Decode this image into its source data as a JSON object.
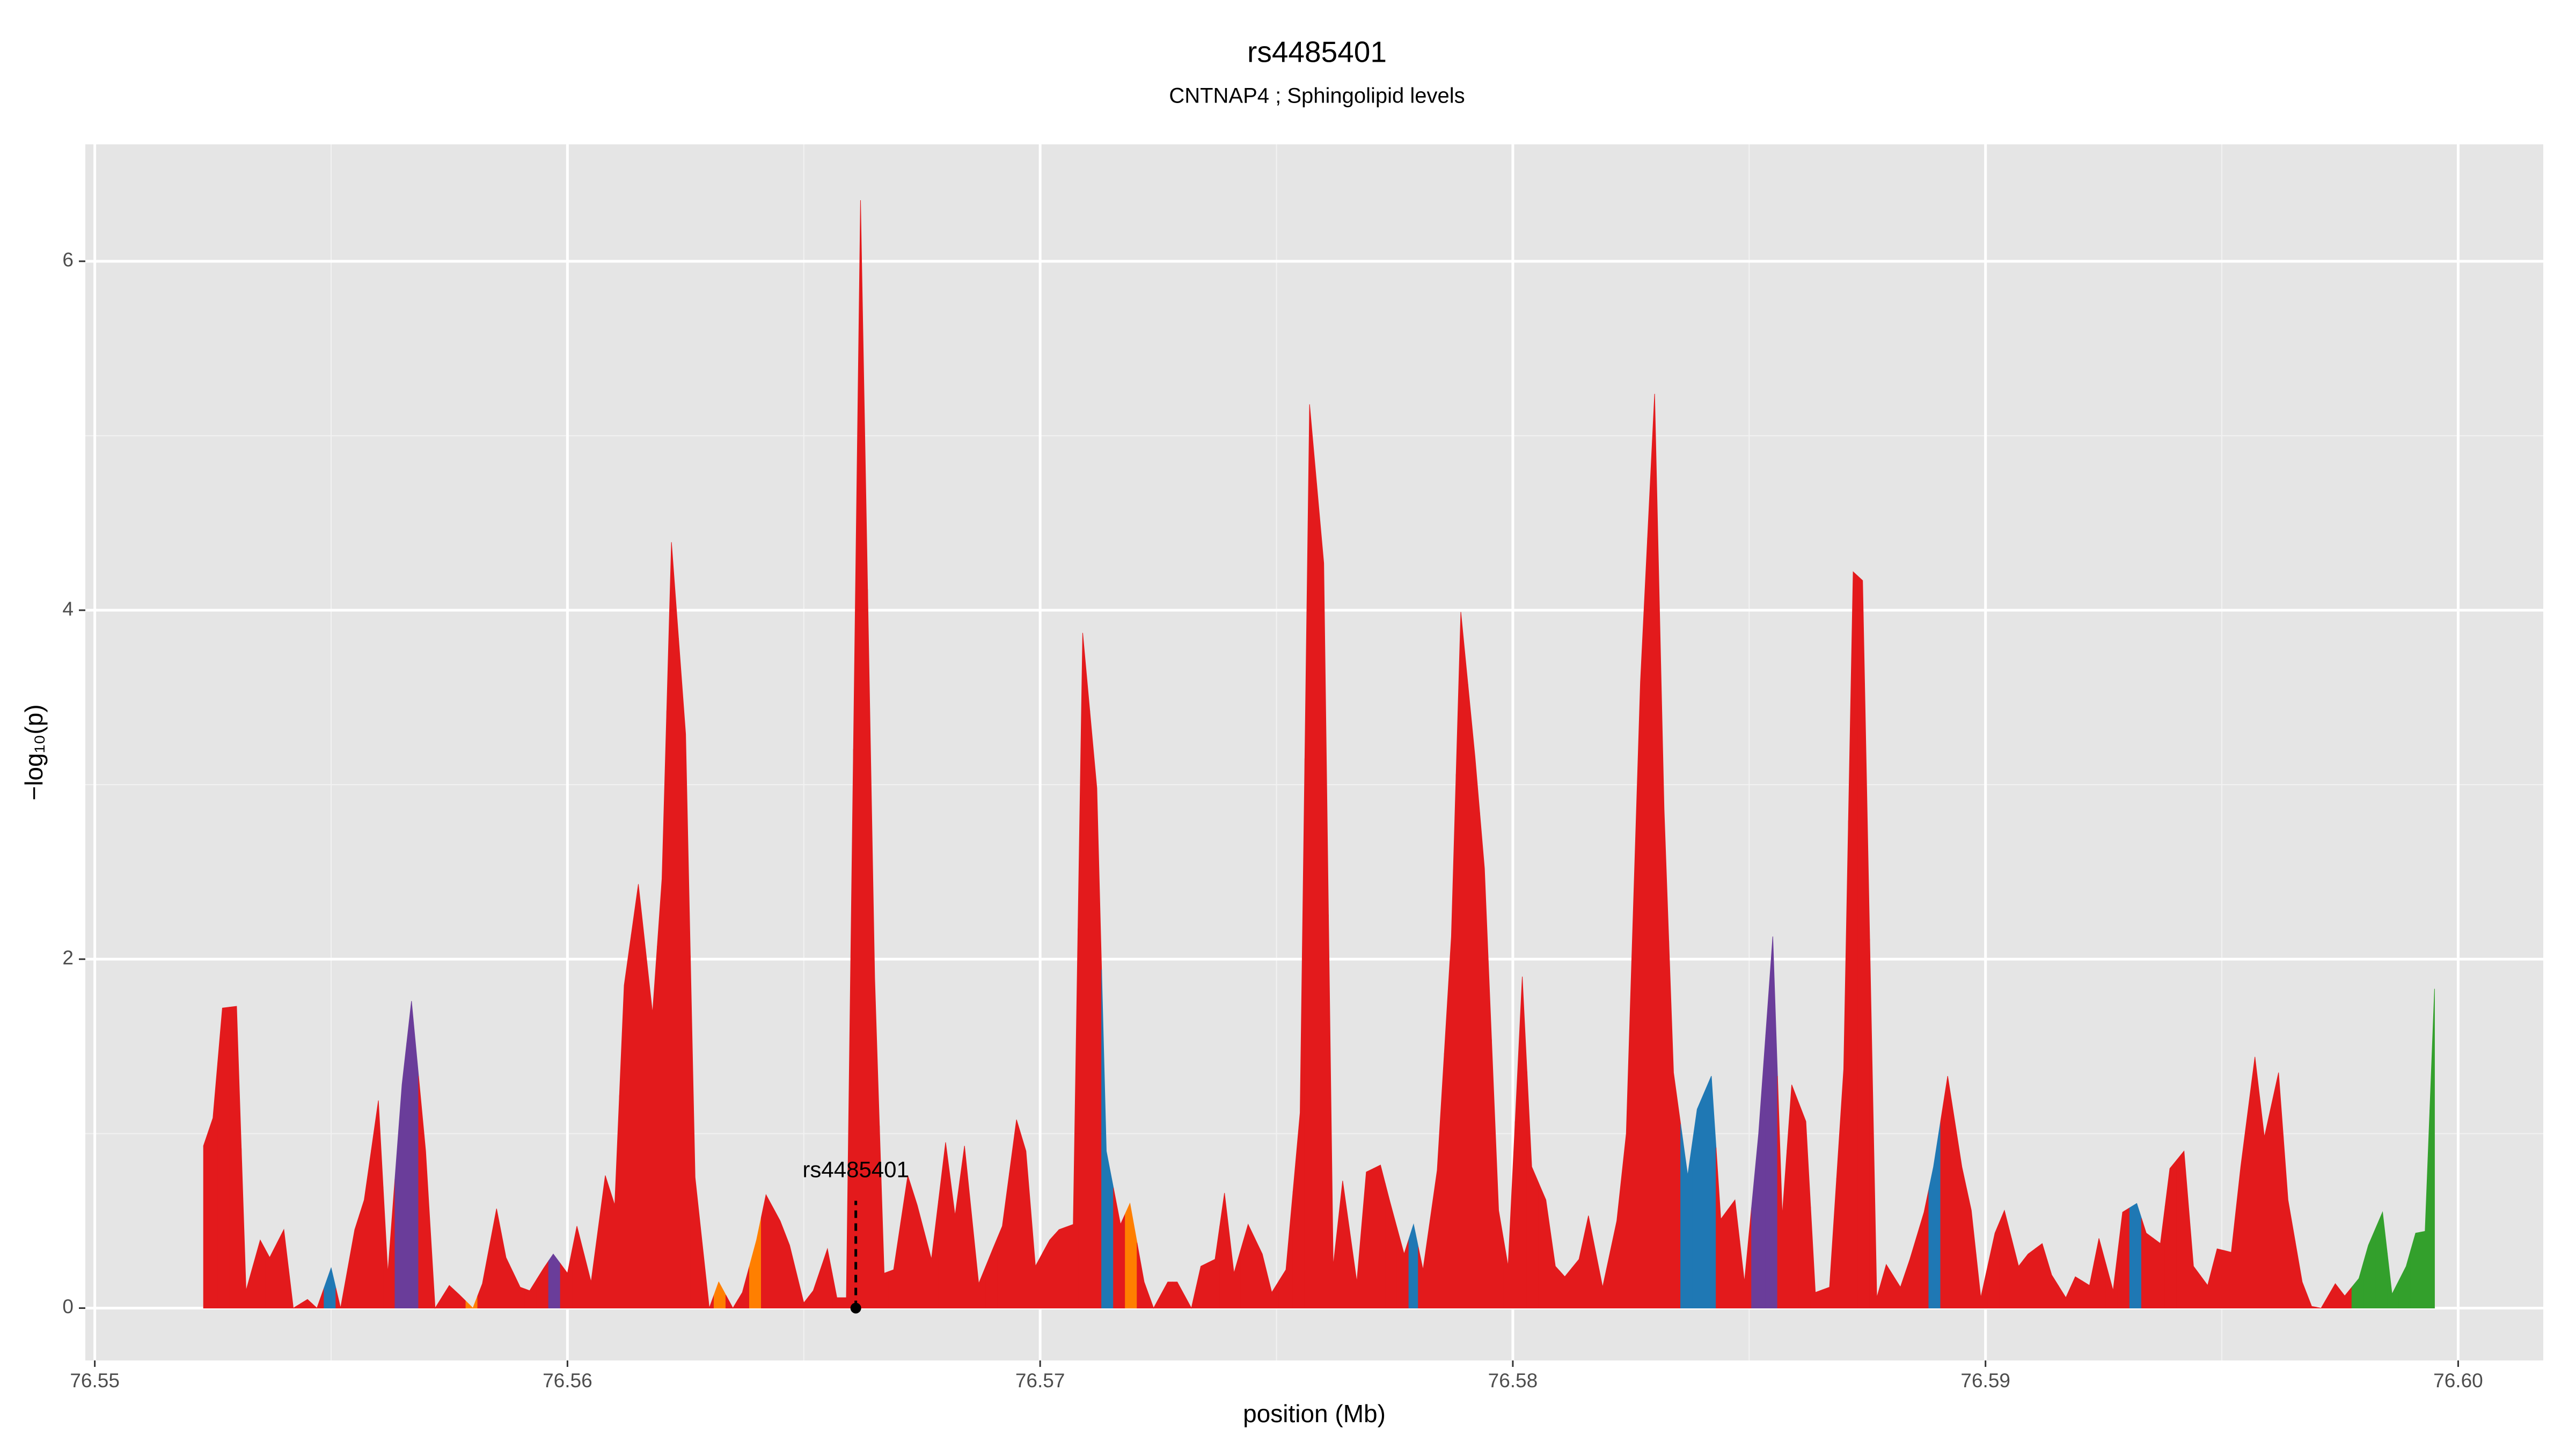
{
  "chart_data": {
    "type": "area",
    "title": "rs4485401",
    "subtitle": "CNTNAP4 ; Sphingolipid levels",
    "xlabel": "position (Mb)",
    "ylabel": "−log₁₀(p)",
    "xlim": [
      76.5498,
      76.6018
    ],
    "ylim": [
      -0.3,
      6.67
    ],
    "xticks": [
      76.55,
      76.56,
      76.57,
      76.58,
      76.59,
      {
        "value": 76.6,
        "label": "76.60"
      }
    ],
    "yticks": [
      0,
      2,
      4,
      6
    ],
    "grid": true,
    "x": [
      76.5523,
      76.5525,
      76.5527,
      76.553,
      76.5532,
      76.5535,
      76.5537,
      76.554,
      76.5542,
      76.5545,
      76.5547,
      76.555,
      76.5552,
      76.5555,
      76.5557,
      76.556,
      76.5562,
      76.5565,
      76.5567,
      76.557,
      76.5572,
      76.5575,
      76.5577,
      76.558,
      76.5582,
      76.5585,
      76.5587,
      76.559,
      76.5592,
      76.5595,
      76.5597,
      76.56,
      76.5602,
      76.5605,
      76.5608,
      76.561,
      76.5612,
      76.5615,
      76.5618,
      76.562,
      76.5622,
      76.5625,
      76.5627,
      76.563,
      76.5632,
      76.5635,
      76.5637,
      76.564,
      76.5642,
      76.5645,
      76.5647,
      76.565,
      76.5652,
      76.5655,
      76.5657,
      76.5659,
      76.5662,
      76.5665,
      76.5667,
      76.5669,
      76.5672,
      76.5674,
      76.5677,
      76.568,
      76.5682,
      76.5684,
      76.5687,
      76.569,
      76.5692,
      76.5695,
      76.5697,
      76.5699,
      76.5702,
      76.5704,
      76.5707,
      76.5709,
      76.5712,
      76.5714,
      76.5717,
      76.5719,
      76.5722,
      76.5724,
      76.5727,
      76.5729,
      76.5732,
      76.5734,
      76.5737,
      76.5739,
      76.5741,
      76.5744,
      76.5747,
      76.5749,
      76.5752,
      76.5755,
      76.5757,
      76.576,
      76.5762,
      76.5764,
      76.5767,
      76.5769,
      76.5772,
      76.5774,
      76.5777,
      76.5779,
      76.5781,
      76.5784,
      76.5787,
      76.5789,
      76.5792,
      76.5794,
      76.5797,
      76.5799,
      76.5802,
      76.5804,
      76.5807,
      76.5809,
      76.5811,
      76.5814,
      76.5816,
      76.5819,
      76.5822,
      76.5824,
      76.5827,
      76.583,
      76.5832,
      76.5834,
      76.5837,
      76.5839,
      76.5842,
      76.5844,
      76.5847,
      76.5849,
      76.5852,
      76.5855,
      76.5857,
      76.5859,
      76.5862,
      76.5864,
      76.5867,
      76.587,
      76.5872,
      76.5874,
      76.5877,
      76.5879,
      76.5882,
      76.5884,
      76.5887,
      76.5889,
      76.5892,
      76.5895,
      76.5897,
      76.5899,
      76.5902,
      76.5904,
      76.5907,
      76.5909,
      76.5912,
      76.5914,
      76.5917,
      76.5919,
      76.5922,
      76.5924,
      76.5927,
      76.5929,
      76.5932,
      76.5934,
      76.5937,
      76.5939,
      76.5942,
      76.5944,
      76.5947,
      76.5949,
      76.5952,
      76.5954,
      76.5957,
      76.5959,
      76.5962,
      76.5964,
      76.5967,
      76.5969,
      76.5971,
      76.5974,
      76.5976,
      76.5979,
      76.5981,
      76.5984,
      76.5986,
      76.5989,
      76.5991,
      76.5993,
      76.5995
    ],
    "values": [
      0.93,
      1.09,
      1.72,
      1.73,
      0.1,
      0.39,
      0.29,
      0.45,
      0,
      0.05,
      0,
      0.23,
      0,
      0.45,
      0.62,
      1.19,
      0.2,
      1.28,
      1.76,
      0.9,
      0,
      0.13,
      0.08,
      0,
      0.14,
      0.57,
      0.29,
      0.12,
      0.1,
      0.23,
      0.31,
      0.2,
      0.47,
      0.15,
      0.76,
      0.59,
      1.85,
      2.43,
      1.69,
      2.46,
      4.39,
      3.29,
      0.75,
      0,
      0.15,
      0,
      0.09,
      0.39,
      0.65,
      0.5,
      0.36,
      0.03,
      0.1,
      0.34,
      0.06,
      0.06,
      6.35,
      1.89,
      0.2,
      0.22,
      0.76,
      0.59,
      0.28,
      0.95,
      0.53,
      0.93,
      0.14,
      0.34,
      0.47,
      1.08,
      0.9,
      0.24,
      0.39,
      0.45,
      0.48,
      3.87,
      2.98,
      0.9,
      0.48,
      0.6,
      0.15,
      0,
      0.15,
      0.15,
      0,
      0.24,
      0.28,
      0.66,
      0.2,
      0.48,
      0.31,
      0.09,
      0.22,
      1.12,
      5.18,
      4.27,
      0.24,
      0.73,
      0.15,
      0.78,
      0.82,
      0.61,
      0.31,
      0.48,
      0.22,
      0.79,
      2.13,
      3.99,
      3.16,
      2.52,
      0.56,
      0.24,
      1.9,
      0.81,
      0.62,
      0.24,
      0.18,
      0.28,
      0.53,
      0.12,
      0.5,
      1,
      3.59,
      5.24,
      2.86,
      1.35,
      0.76,
      1.14,
      1.33,
      0.51,
      0.62,
      0.15,
      1,
      2.13,
      0.53,
      1.28,
      1.07,
      0.09,
      0.12,
      1.37,
      4.22,
      4.17,
      0.06,
      0.25,
      0.12,
      0.28,
      0.55,
      0.81,
      1.33,
      0.81,
      0.56,
      0.06,
      0.43,
      0.56,
      0.24,
      0.31,
      0.37,
      0.19,
      0.06,
      0.18,
      0.13,
      0.4,
      0.1,
      0.55,
      0.6,
      0.43,
      0.37,
      0.8,
      0.9,
      0.24,
      0.13,
      0.34,
      0.32,
      0.81,
      1.44,
      0.98,
      1.35,
      0.62,
      0.15,
      0.01,
      0,
      0.14,
      0.07,
      0.17,
      0.36,
      0.55,
      0.08,
      0.24,
      0.43,
      0.44,
      1.83
    ],
    "colors": [
      "#e31a1c",
      "#e31a1c",
      "#e31a1c",
      "#e31a1c",
      "#e31a1c",
      "#e31a1c",
      "#e31a1c",
      "#e31a1c",
      "#e31a1c",
      "#e31a1c",
      "#e31a1c",
      "#1f78b4",
      "#e31a1c",
      "#e31a1c",
      "#e31a1c",
      "#e31a1c",
      "#e31a1c",
      "#6a3d9a",
      "#6a3d9a",
      "#e31a1c",
      "#e31a1c",
      "#e31a1c",
      "#e31a1c",
      "#ff7f00",
      "#e31a1c",
      "#e31a1c",
      "#e31a1c",
      "#e31a1c",
      "#e31a1c",
      "#e31a1c",
      "#6a3d9a",
      "#e31a1c",
      "#e31a1c",
      "#e31a1c",
      "#e31a1c",
      "#e31a1c",
      "#e31a1c",
      "#e31a1c",
      "#e31a1c",
      "#e31a1c",
      "#e31a1c",
      "#e31a1c",
      "#e31a1c",
      "#e31a1c",
      "#ff7f00",
      "#e31a1c",
      "#e31a1c",
      "#ff7f00",
      "#e31a1c",
      "#e31a1c",
      "#e31a1c",
      "#e31a1c",
      "#e31a1c",
      "#e31a1c",
      "#e31a1c",
      "#e31a1c",
      "#e31a1c",
      "#e31a1c",
      "#e31a1c",
      "#e31a1c",
      "#e31a1c",
      "#e31a1c",
      "#e31a1c",
      "#e31a1c",
      "#e31a1c",
      "#e31a1c",
      "#e31a1c",
      "#e31a1c",
      "#e31a1c",
      "#e31a1c",
      "#e31a1c",
      "#e31a1c",
      "#e31a1c",
      "#e31a1c",
      "#e31a1c",
      "#e31a1c",
      "#e31a1c",
      "#1f78b4",
      "#e31a1c",
      "#ff7f00",
      "#e31a1c",
      "#e31a1c",
      "#e31a1c",
      "#e31a1c",
      "#e31a1c",
      "#e31a1c",
      "#e31a1c",
      "#e31a1c",
      "#e31a1c",
      "#e31a1c",
      "#e31a1c",
      "#e31a1c",
      "#e31a1c",
      "#e31a1c",
      "#e31a1c",
      "#e31a1c",
      "#e31a1c",
      "#e31a1c",
      "#e31a1c",
      "#e31a1c",
      "#e31a1c",
      "#e31a1c",
      "#e31a1c",
      "#1f78b4",
      "#e31a1c",
      "#e31a1c",
      "#e31a1c",
      "#e31a1c",
      "#e31a1c",
      "#e31a1c",
      "#e31a1c",
      "#e31a1c",
      "#e31a1c",
      "#e31a1c",
      "#e31a1c",
      "#e31a1c",
      "#e31a1c",
      "#e31a1c",
      "#e31a1c",
      "#e31a1c",
      "#e31a1c",
      "#e31a1c",
      "#e31a1c",
      "#e31a1c",
      "#e31a1c",
      "#e31a1c",
      "#1f78b4",
      "#1f78b4",
      "#1f78b4",
      "#e31a1c",
      "#e31a1c",
      "#e31a1c",
      "#6a3d9a",
      "#6a3d9a",
      "#e31a1c",
      "#e31a1c",
      "#e31a1c",
      "#e31a1c",
      "#e31a1c",
      "#e31a1c",
      "#e31a1c",
      "#e31a1c",
      "#e31a1c",
      "#e31a1c",
      "#e31a1c",
      "#e31a1c",
      "#e31a1c",
      "#1f78b4",
      "#e31a1c",
      "#e31a1c",
      "#e31a1c",
      "#e31a1c",
      "#e31a1c",
      "#e31a1c",
      "#e31a1c",
      "#e31a1c",
      "#e31a1c",
      "#e31a1c",
      "#e31a1c",
      "#e31a1c",
      "#e31a1c",
      "#e31a1c",
      "#e31a1c",
      "#e31a1c",
      "#1f78b4",
      "#e31a1c",
      "#e31a1c",
      "#e31a1c",
      "#e31a1c",
      "#e31a1c",
      "#e31a1c",
      "#e31a1c",
      "#e31a1c",
      "#e31a1c",
      "#e31a1c",
      "#e31a1c",
      "#e31a1c",
      "#e31a1c",
      "#e31a1c",
      "#e31a1c",
      "#e31a1c",
      "#e31a1c",
      "#e31a1c",
      "#33a02c",
      "#33a02c",
      "#33a02c",
      "#33a02c",
      "#33a02c",
      "#33a02c",
      "#33a02c",
      "#33a02c"
    ],
    "annotation": {
      "text": "rs4485401",
      "x": 76.5661,
      "y": 0
    }
  }
}
